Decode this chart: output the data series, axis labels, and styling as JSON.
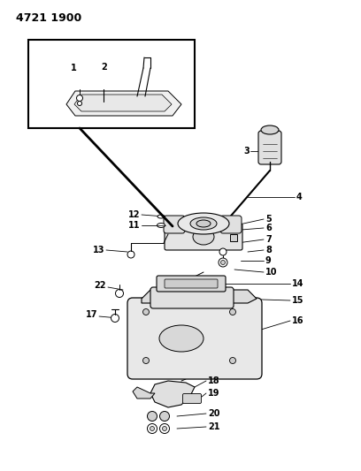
{
  "title": "4721 1900",
  "bg_color": "#ffffff",
  "lc": "#000000",
  "fig_width": 4.08,
  "fig_height": 5.33,
  "dpi": 100,
  "fs_title": 9,
  "fs_label": 7
}
